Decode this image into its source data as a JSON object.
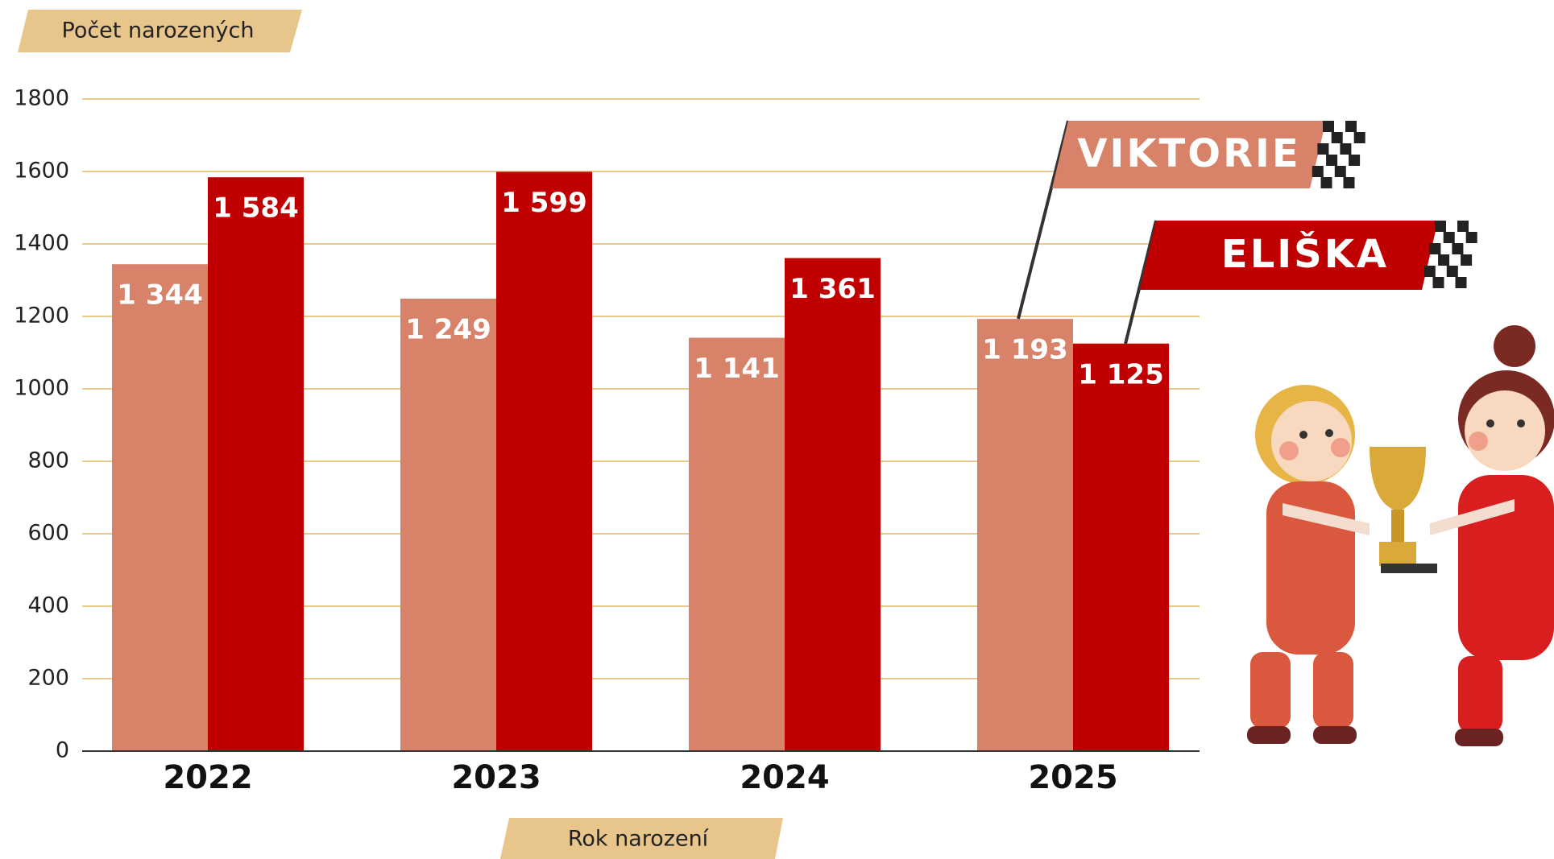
{
  "chart_data": {
    "type": "bar",
    "y_label": "Počet narozených",
    "x_label": "Rok narození",
    "categories": [
      "2022",
      "2023",
      "2024",
      "2025"
    ],
    "series": [
      {
        "name": "VIKTORIE",
        "color": "#d9826a",
        "values": [
          1344,
          1249,
          1141,
          1193
        ],
        "value_labels": [
          "1 344",
          "1 249",
          "1 141",
          "1 193"
        ]
      },
      {
        "name": "ELIŠKA",
        "color": "#c00000",
        "values": [
          1584,
          1599,
          1361,
          1125
        ],
        "value_labels": [
          "1 584",
          "1 599",
          "1 361",
          "1 125"
        ]
      }
    ],
    "ylim": [
      0,
      1800
    ],
    "yticks": [
      0,
      200,
      400,
      600,
      800,
      1000,
      1200,
      1400,
      1600,
      1800
    ],
    "grid": true,
    "grid_color": "#e8c98f"
  }
}
